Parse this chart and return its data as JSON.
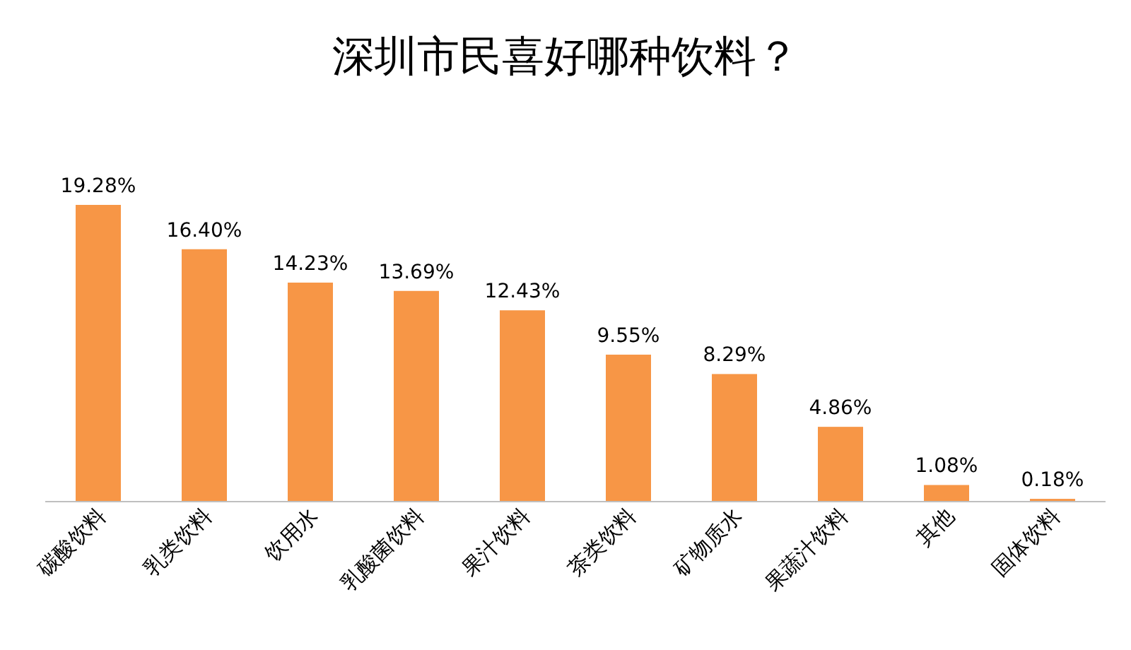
{
  "chart_data": {
    "type": "bar",
    "title": "深圳市民喜好哪种饮料？",
    "categories": [
      "碳酸饮料",
      "乳类饮料",
      "饮用水",
      "乳酸菌饮料",
      "果汁饮料",
      "茶类饮料",
      "矿物质水",
      "果蔬汁饮料",
      "其他",
      "固体饮料"
    ],
    "values": [
      19.28,
      16.4,
      14.23,
      13.69,
      12.43,
      9.55,
      8.29,
      4.86,
      1.08,
      0.18
    ],
    "value_labels": [
      "19.28%",
      "16.40%",
      "14.23%",
      "13.69%",
      "12.43%",
      "9.55%",
      "8.29%",
      "4.86%",
      "1.08%",
      "0.18%"
    ],
    "color": "#f79646"
  }
}
